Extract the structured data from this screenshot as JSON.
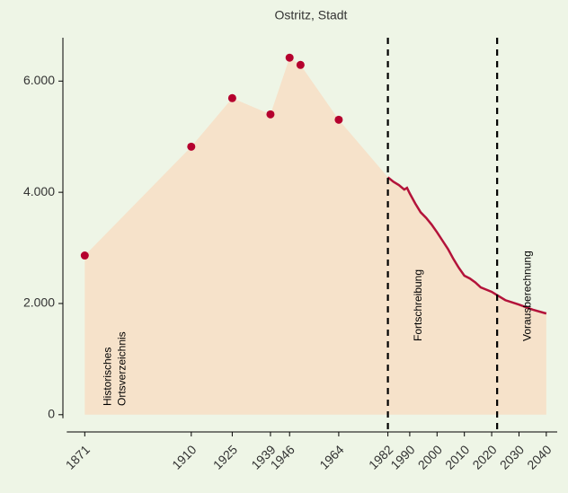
{
  "chart_data": {
    "type": "area",
    "title": "Ostritz, Stadt",
    "area_color": "#f6e2ca",
    "series": [
      {
        "style": "points",
        "color": "#b5002e",
        "x": [
          1871,
          1910,
          1925,
          1939,
          1946,
          1950,
          1964
        ],
        "values": [
          2863,
          4820,
          5693,
          5402,
          6421,
          6291,
          5305
        ]
      },
      {
        "style": "line",
        "color": "#b3133a",
        "x": [
          1982,
          1984,
          1986,
          1988,
          1989,
          1990,
          1992,
          1994,
          1996,
          1998,
          2000,
          2002,
          2004,
          2006,
          2008,
          2010,
          2012,
          2014,
          2016,
          2018,
          2020,
          2022,
          2025,
          2030,
          2035,
          2040
        ],
        "values": [
          4270,
          4190,
          4130,
          4050,
          4080,
          3980,
          3800,
          3640,
          3540,
          3420,
          3280,
          3130,
          2980,
          2800,
          2640,
          2500,
          2450,
          2380,
          2290,
          2250,
          2210,
          2150,
          2060,
          1980,
          1890,
          1820
        ]
      }
    ],
    "vlines": [
      1982,
      2022
    ],
    "annotations": [
      [
        "Historisches",
        "Ortsverzeichnis"
      ],
      [
        "Fortschreibung"
      ],
      [
        "Vorausberechnung"
      ]
    ],
    "xlim": [
      1863,
      2044
    ],
    "xticks": [
      1871,
      1910,
      1925,
      1939,
      1946,
      1964,
      1982,
      1990,
      2000,
      2010,
      2020,
      2030,
      2040
    ],
    "ylim": [
      -310,
      6780
    ],
    "yticks": [
      0,
      {
        "value": 2000,
        "label": "2.000"
      },
      {
        "value": 4000,
        "label": "4.000"
      },
      {
        "value": 6000,
        "label": "6.000"
      }
    ]
  }
}
